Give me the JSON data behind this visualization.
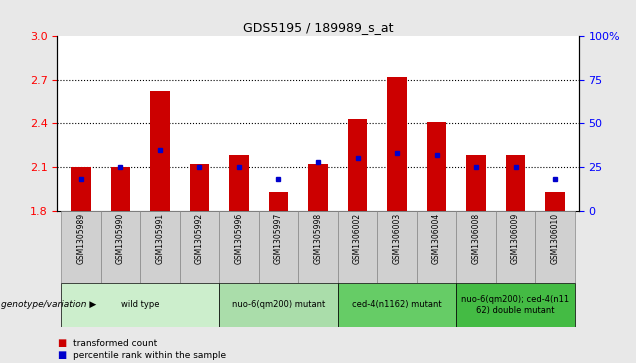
{
  "title": "GDS5195 / 189989_s_at",
  "samples": [
    "GSM1305989",
    "GSM1305990",
    "GSM1305991",
    "GSM1305992",
    "GSM1305996",
    "GSM1305997",
    "GSM1305998",
    "GSM1306002",
    "GSM1306003",
    "GSM1306004",
    "GSM1306008",
    "GSM1306009",
    "GSM1306010"
  ],
  "transformed_count": [
    2.1,
    2.1,
    2.62,
    2.12,
    2.18,
    1.93,
    2.12,
    2.43,
    2.72,
    2.41,
    2.18,
    2.18,
    1.93
  ],
  "percentile_rank": [
    18,
    25,
    35,
    25,
    25,
    18,
    28,
    30,
    33,
    32,
    25,
    25,
    18
  ],
  "bar_bottom": 1.8,
  "ylim_left": [
    1.8,
    3.0
  ],
  "ylim_right": [
    0,
    100
  ],
  "yticks_left": [
    1.8,
    2.1,
    2.4,
    2.7,
    3.0
  ],
  "yticks_right": [
    0,
    25,
    50,
    75,
    100
  ],
  "grid_lines": [
    2.1,
    2.4,
    2.7
  ],
  "bar_color": "#cc0000",
  "dot_color": "#0000cc",
  "groups": [
    {
      "label": "wild type",
      "indices": [
        0,
        1,
        2,
        3
      ],
      "color": "#cceecc"
    },
    {
      "label": "nuo-6(qm200) mutant",
      "indices": [
        4,
        5,
        6
      ],
      "color": "#aaddaa"
    },
    {
      "label": "ced-4(n1162) mutant",
      "indices": [
        7,
        8,
        9
      ],
      "color": "#66cc66"
    },
    {
      "label": "nuo-6(qm200); ced-4(n11\n62) double mutant",
      "indices": [
        10,
        11,
        12
      ],
      "color": "#44bb44"
    }
  ],
  "xlabel": "genotype/variation",
  "legend_transformed": "transformed count",
  "legend_percentile": "percentile rank within the sample",
  "fig_bg": "#e8e8e8",
  "plot_bg": "#ffffff",
  "sample_box_bg": "#d0d0d0"
}
